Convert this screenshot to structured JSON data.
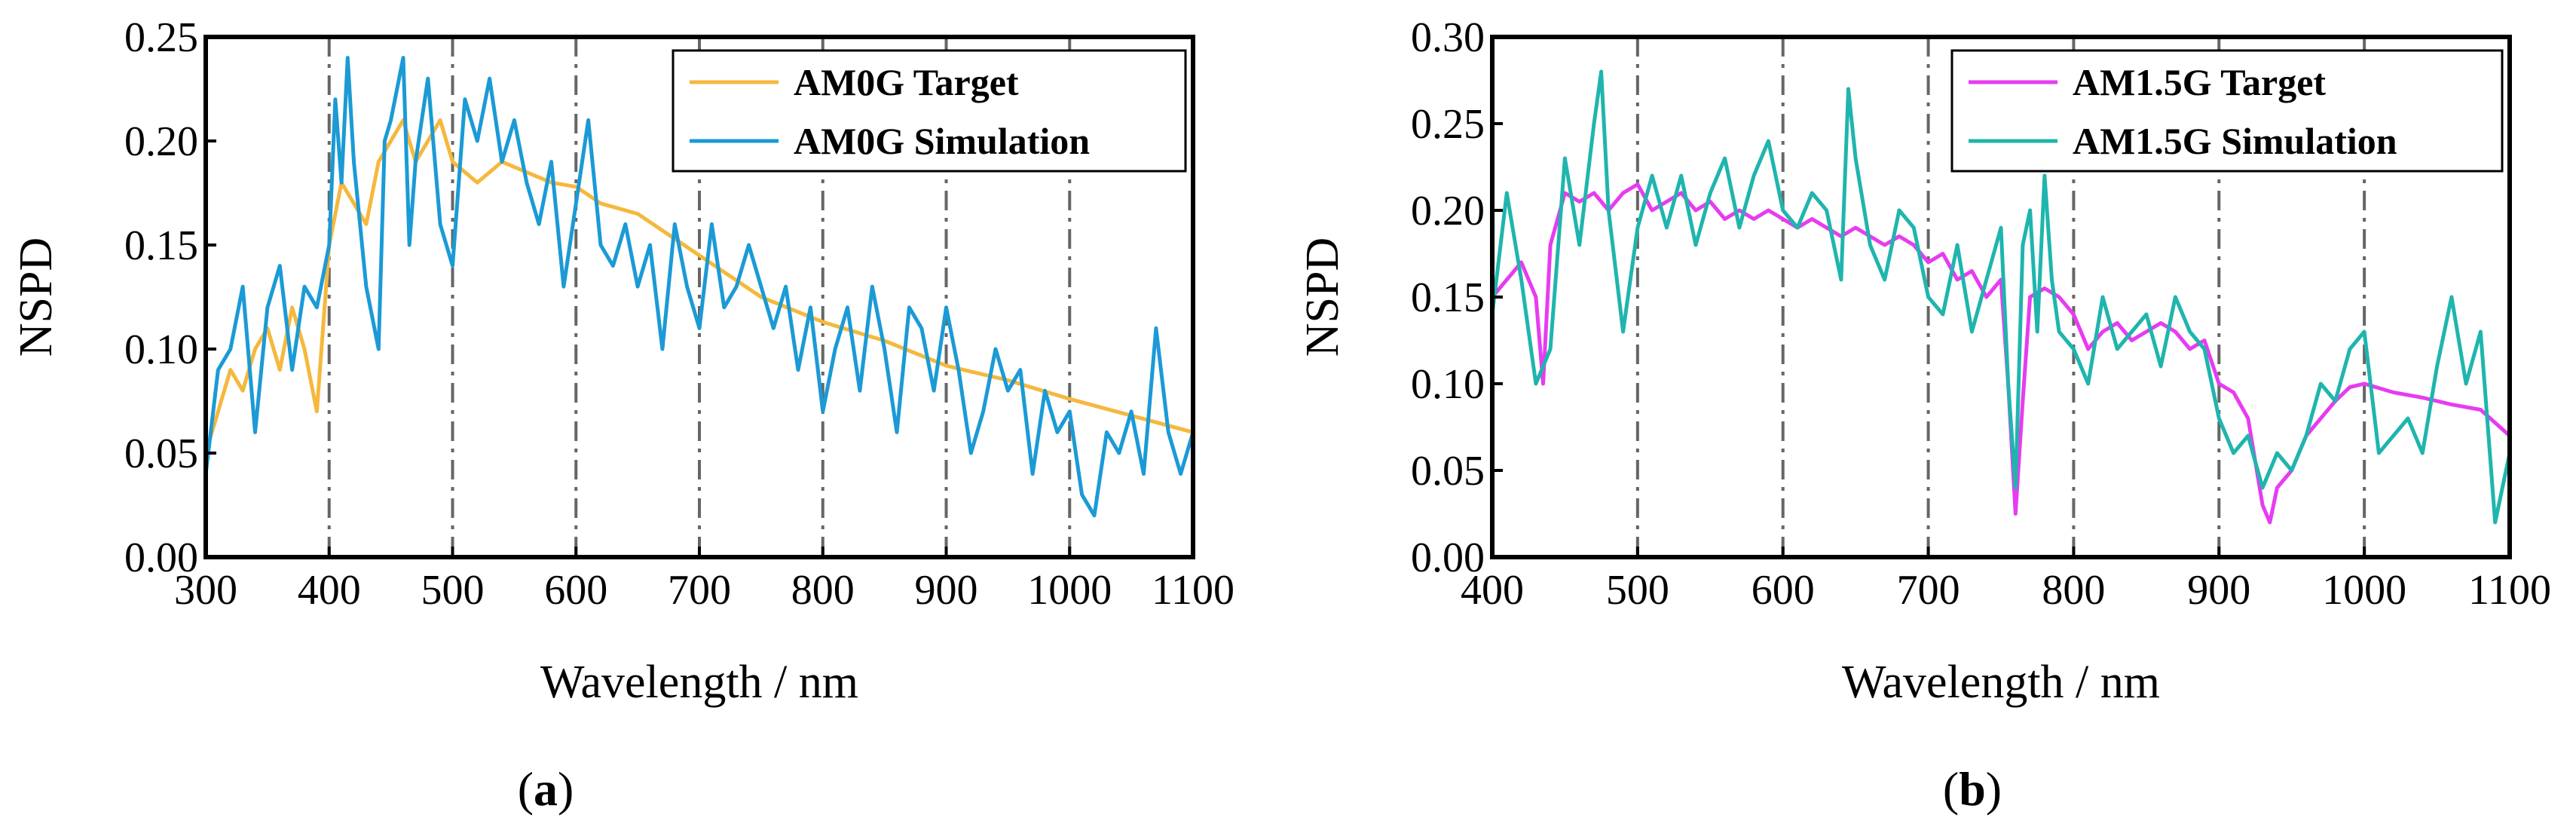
{
  "chart_data": [
    {
      "type": "line",
      "panel_label": "(a)",
      "panel_letter": "a",
      "xlabel": "Wavelength / nm",
      "ylabel": "NSPD",
      "xlim": [
        300,
        1100
      ],
      "ylim": [
        0,
        0.25
      ],
      "xticks": [
        300,
        400,
        500,
        600,
        700,
        800,
        900,
        1000,
        1100
      ],
      "yticks": [
        0.0,
        0.05,
        0.1,
        0.15,
        0.2,
        0.25
      ],
      "xtick_labels": [
        "300",
        "400",
        "500",
        "600",
        "700",
        "800",
        "900",
        "1000",
        "1100"
      ],
      "ytick_labels": [
        "0.00",
        "0.05",
        "0.10",
        "0.15",
        "0.20",
        "0.25"
      ],
      "vlines": [
        400,
        500,
        600,
        700,
        800,
        900,
        1000
      ],
      "legend_position": "top-right",
      "series": [
        {
          "name": "AM0G Target",
          "color": "#F5B83D",
          "x": [
            300,
            310,
            320,
            330,
            340,
            350,
            360,
            370,
            380,
            390,
            400,
            410,
            420,
            430,
            440,
            450,
            460,
            470,
            480,
            490,
            500,
            520,
            540,
            560,
            580,
            600,
            620,
            650,
            700,
            750,
            800,
            850,
            900,
            950,
            1000,
            1050,
            1100
          ],
          "y": [
            0.05,
            0.07,
            0.09,
            0.08,
            0.1,
            0.11,
            0.09,
            0.12,
            0.1,
            0.07,
            0.15,
            0.18,
            0.17,
            0.16,
            0.19,
            0.2,
            0.21,
            0.19,
            0.2,
            0.21,
            0.19,
            0.18,
            0.19,
            0.185,
            0.18,
            0.178,
            0.17,
            0.165,
            0.145,
            0.125,
            0.113,
            0.104,
            0.092,
            0.085,
            0.076,
            0.068,
            0.06
          ]
        },
        {
          "name": "AM0G Simulation",
          "color": "#1B9AD6",
          "x": [
            300,
            310,
            320,
            330,
            340,
            350,
            360,
            370,
            380,
            390,
            400,
            405,
            410,
            415,
            420,
            430,
            440,
            445,
            450,
            460,
            465,
            470,
            480,
            490,
            500,
            510,
            520,
            530,
            540,
            550,
            560,
            570,
            580,
            590,
            600,
            610,
            620,
            630,
            640,
            650,
            660,
            670,
            680,
            690,
            700,
            710,
            720,
            730,
            740,
            750,
            760,
            770,
            780,
            790,
            800,
            810,
            820,
            830,
            840,
            850,
            860,
            870,
            880,
            890,
            900,
            910,
            920,
            930,
            940,
            950,
            960,
            970,
            980,
            990,
            1000,
            1010,
            1020,
            1030,
            1040,
            1050,
            1060,
            1070,
            1080,
            1090,
            1100
          ],
          "y": [
            0.04,
            0.09,
            0.1,
            0.13,
            0.06,
            0.12,
            0.14,
            0.09,
            0.13,
            0.12,
            0.15,
            0.22,
            0.18,
            0.24,
            0.19,
            0.13,
            0.1,
            0.2,
            0.21,
            0.24,
            0.15,
            0.19,
            0.23,
            0.16,
            0.14,
            0.22,
            0.2,
            0.23,
            0.19,
            0.21,
            0.18,
            0.16,
            0.19,
            0.13,
            0.17,
            0.21,
            0.15,
            0.14,
            0.16,
            0.13,
            0.15,
            0.1,
            0.16,
            0.13,
            0.11,
            0.16,
            0.12,
            0.13,
            0.15,
            0.13,
            0.11,
            0.13,
            0.09,
            0.12,
            0.07,
            0.1,
            0.12,
            0.08,
            0.13,
            0.1,
            0.06,
            0.12,
            0.11,
            0.08,
            0.12,
            0.09,
            0.05,
            0.07,
            0.1,
            0.08,
            0.09,
            0.04,
            0.08,
            0.06,
            0.07,
            0.03,
            0.02,
            0.06,
            0.05,
            0.07,
            0.04,
            0.11,
            0.06,
            0.04,
            0.06
          ]
        }
      ]
    },
    {
      "type": "line",
      "panel_label": "(b)",
      "panel_letter": "b",
      "xlabel": "Wavelength / nm",
      "ylabel": "NSPD",
      "xlim": [
        400,
        1100
      ],
      "ylim": [
        0,
        0.3
      ],
      "xticks": [
        400,
        500,
        600,
        700,
        800,
        900,
        1000,
        1100
      ],
      "yticks": [
        0.0,
        0.05,
        0.1,
        0.15,
        0.2,
        0.25,
        0.3
      ],
      "xtick_labels": [
        "400",
        "500",
        "600",
        "700",
        "800",
        "900",
        "1000",
        "1100"
      ],
      "ytick_labels": [
        "0.00",
        "0.05",
        "0.10",
        "0.15",
        "0.20",
        "0.25",
        "0.30"
      ],
      "vlines": [
        500,
        600,
        700,
        800,
        900,
        1000
      ],
      "legend_position": "top-right",
      "series": [
        {
          "name": "AM1.5G Target",
          "color": "#E63CF0",
          "x": [
            400,
            410,
            420,
            430,
            435,
            440,
            450,
            460,
            470,
            480,
            490,
            500,
            510,
            520,
            530,
            540,
            550,
            560,
            570,
            580,
            590,
            600,
            610,
            620,
            630,
            640,
            650,
            660,
            670,
            680,
            690,
            700,
            710,
            720,
            730,
            740,
            750,
            755,
            760,
            765,
            770,
            780,
            790,
            800,
            810,
            820,
            830,
            840,
            850,
            860,
            870,
            880,
            890,
            900,
            910,
            920,
            930,
            935,
            940,
            950,
            960,
            970,
            980,
            990,
            1000,
            1020,
            1040,
            1060,
            1080,
            1100
          ],
          "y": [
            0.15,
            0.16,
            0.17,
            0.15,
            0.1,
            0.18,
            0.21,
            0.205,
            0.21,
            0.2,
            0.21,
            0.215,
            0.2,
            0.205,
            0.21,
            0.2,
            0.205,
            0.195,
            0.2,
            0.195,
            0.2,
            0.195,
            0.19,
            0.195,
            0.19,
            0.185,
            0.19,
            0.185,
            0.18,
            0.185,
            0.18,
            0.17,
            0.175,
            0.16,
            0.165,
            0.15,
            0.16,
            0.1,
            0.025,
            0.09,
            0.15,
            0.155,
            0.15,
            0.14,
            0.12,
            0.13,
            0.135,
            0.125,
            0.13,
            0.135,
            0.13,
            0.12,
            0.125,
            0.1,
            0.095,
            0.08,
            0.03,
            0.02,
            0.04,
            0.05,
            0.07,
            0.08,
            0.09,
            0.098,
            0.1,
            0.095,
            0.092,
            0.088,
            0.085,
            0.07
          ]
        },
        {
          "name": "AM1.5G Simulation",
          "color": "#1FB5AE",
          "x": [
            400,
            410,
            420,
            430,
            440,
            450,
            460,
            470,
            475,
            480,
            490,
            500,
            510,
            520,
            530,
            540,
            550,
            560,
            570,
            580,
            590,
            600,
            610,
            620,
            630,
            640,
            645,
            650,
            660,
            670,
            680,
            690,
            700,
            710,
            720,
            730,
            740,
            750,
            755,
            760,
            765,
            770,
            775,
            780,
            785,
            790,
            800,
            810,
            820,
            830,
            840,
            850,
            860,
            870,
            880,
            890,
            900,
            910,
            920,
            930,
            940,
            950,
            960,
            970,
            980,
            990,
            1000,
            1010,
            1020,
            1030,
            1040,
            1050,
            1060,
            1070,
            1080,
            1090,
            1100
          ],
          "y": [
            0.14,
            0.21,
            0.16,
            0.1,
            0.12,
            0.23,
            0.18,
            0.25,
            0.28,
            0.2,
            0.13,
            0.19,
            0.22,
            0.19,
            0.22,
            0.18,
            0.21,
            0.23,
            0.19,
            0.22,
            0.24,
            0.2,
            0.19,
            0.21,
            0.2,
            0.16,
            0.27,
            0.23,
            0.18,
            0.16,
            0.2,
            0.19,
            0.15,
            0.14,
            0.18,
            0.13,
            0.16,
            0.19,
            0.1,
            0.04,
            0.18,
            0.2,
            0.13,
            0.22,
            0.16,
            0.13,
            0.12,
            0.1,
            0.15,
            0.12,
            0.13,
            0.14,
            0.11,
            0.15,
            0.13,
            0.12,
            0.08,
            0.06,
            0.07,
            0.04,
            0.06,
            0.05,
            0.07,
            0.1,
            0.09,
            0.12,
            0.13,
            0.06,
            0.07,
            0.08,
            0.06,
            0.11,
            0.15,
            0.1,
            0.13,
            0.02,
            0.06
          ]
        }
      ]
    }
  ]
}
